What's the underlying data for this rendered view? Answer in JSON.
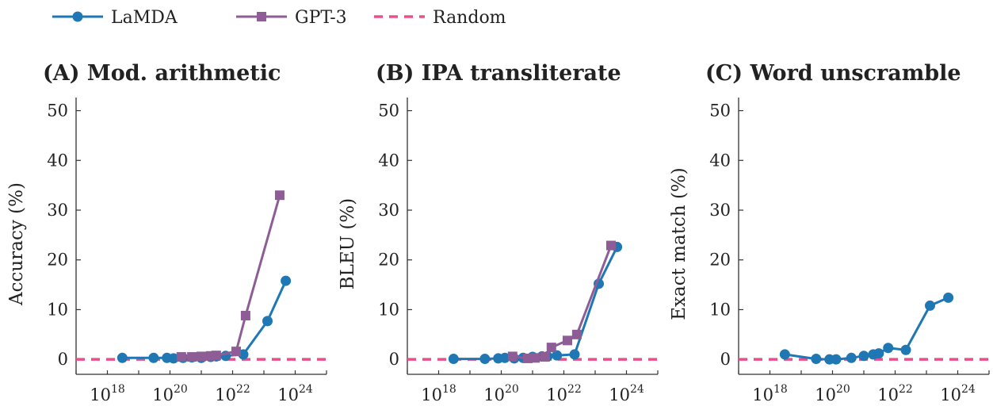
{
  "legend": [
    {
      "name": "LaMDA",
      "color": "#1f77b4",
      "marker": "circle"
    },
    {
      "name": "GPT-3",
      "color": "#8e5d96",
      "marker": "square"
    },
    {
      "name": "Random",
      "color": "#e8508a",
      "marker": "dashed-line"
    }
  ],
  "chart_data": [
    {
      "type": "line",
      "title": "(A) Mod. arithmetic",
      "ylabel": "Accuracy (%)",
      "xlabel": "",
      "x_scale": "log",
      "xlim": [
        1e+17,
        1e+25
      ],
      "ylim": [
        -3,
        52
      ],
      "yticks": [
        0,
        10,
        20,
        30,
        40,
        50
      ],
      "xticks": [
        {
          "base": "10",
          "exp": "18",
          "value": 1e+18
        },
        {
          "base": "10",
          "exp": "20",
          "value": 1e+20
        },
        {
          "base": "10",
          "exp": "22",
          "value": 1e+22
        },
        {
          "base": "10",
          "exp": "24",
          "value": 1e+24
        }
      ],
      "random_baseline": 0,
      "series": [
        {
          "name": "LaMDA",
          "x": [
            3e+18,
            3e+19,
            8e+19,
            1.3e+20,
            2.6e+20,
            5e+20,
            1e+21,
            2e+21,
            3e+21,
            6e+21,
            2.2e+22,
            1.3e+23,
            5e+23
          ],
          "y": [
            0.3,
            0.3,
            0.3,
            0.2,
            0.3,
            0.4,
            0.3,
            0.5,
            0.6,
            0.7,
            1.0,
            7.7,
            15.8
          ]
        },
        {
          "name": "GPT-3",
          "x": [
            2.3e+20,
            5e+20,
            1e+21,
            2e+21,
            3e+21,
            1.3e+22,
            2.6e+22,
            3.2e+23
          ],
          "y": [
            0.5,
            0.5,
            0.6,
            0.7,
            0.8,
            1.6,
            8.8,
            33
          ]
        }
      ]
    },
    {
      "type": "line",
      "title": "(B) IPA transliterate",
      "ylabel": "BLEU (%)",
      "xlabel": "",
      "x_scale": "log",
      "xlim": [
        1e+17,
        1e+25
      ],
      "ylim": [
        -3,
        52
      ],
      "yticks": [
        0,
        10,
        20,
        30,
        40,
        50
      ],
      "xticks": [
        {
          "base": "10",
          "exp": "18",
          "value": 1e+18
        },
        {
          "base": "10",
          "exp": "20",
          "value": 1e+20
        },
        {
          "base": "10",
          "exp": "22",
          "value": 1e+22
        },
        {
          "base": "10",
          "exp": "24",
          "value": 1e+24
        }
      ],
      "random_baseline": 0,
      "series": [
        {
          "name": "LaMDA",
          "x": [
            3e+18,
            3e+19,
            8e+19,
            1.3e+20,
            2.6e+20,
            5e+20,
            1e+21,
            2e+21,
            3e+21,
            6e+21,
            2.2e+22,
            1.3e+23,
            5e+23
          ],
          "y": [
            0.1,
            0.1,
            0.2,
            0.3,
            0.2,
            0.3,
            0.5,
            0.6,
            0.6,
            0.8,
            1.0,
            15.2,
            22.6
          ]
        },
        {
          "name": "GPT-3",
          "x": [
            2.3e+20,
            7e+20,
            1.2e+21,
            2.5e+21,
            4e+21,
            1.3e+22,
            2.6e+22,
            3.2e+23
          ],
          "y": [
            0.6,
            0.2,
            0.3,
            0.5,
            2.4,
            3.8,
            5.0,
            22.9
          ]
        }
      ]
    },
    {
      "type": "line",
      "title": "(C) Word unscramble",
      "ylabel": "Exact match (%)",
      "xlabel": "",
      "x_scale": "log",
      "xlim": [
        1e+17,
        1e+25
      ],
      "ylim": [
        -3,
        52
      ],
      "yticks": [
        0,
        10,
        20,
        30,
        40,
        50
      ],
      "xticks": [
        {
          "base": "10",
          "exp": "18",
          "value": 1e+18
        },
        {
          "base": "10",
          "exp": "20",
          "value": 1e+20
        },
        {
          "base": "10",
          "exp": "22",
          "value": 1e+22
        },
        {
          "base": "10",
          "exp": "24",
          "value": 1e+24
        }
      ],
      "random_baseline": 0,
      "series": [
        {
          "name": "LaMDA",
          "x": [
            3e+18,
            3e+19,
            8e+19,
            1.3e+20,
            4e+20,
            1e+21,
            2e+21,
            3e+21,
            6e+21,
            2.2e+22,
            1.3e+23,
            5e+23
          ],
          "y": [
            1.0,
            0.1,
            0.0,
            0.0,
            0.3,
            0.7,
            1.0,
            1.2,
            2.3,
            1.9,
            10.8,
            12.4
          ]
        }
      ]
    }
  ]
}
